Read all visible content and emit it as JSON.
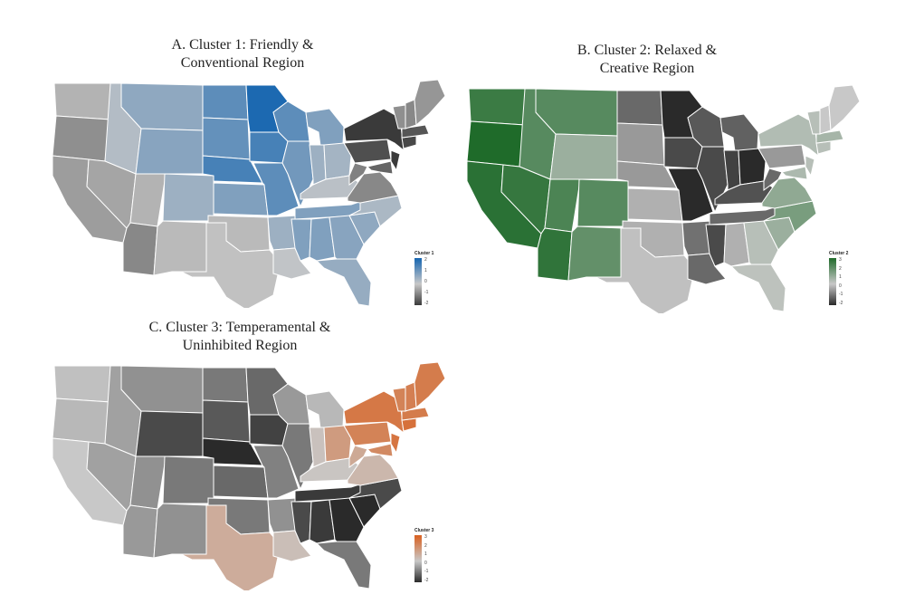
{
  "panels": [
    {
      "title_line1": "A. Cluster 1: Friendly &",
      "title_line2": "Conventional Region",
      "legend_title": "Cluster 1",
      "legend_ticks": [
        "2",
        "1",
        "0",
        "-1",
        "-2"
      ],
      "scale": {
        "low": "#3a3a3a",
        "mid": "#c8c8c8",
        "high": "#1565b0"
      }
    },
    {
      "title_line1": "B. Cluster 2: Relaxed &",
      "title_line2": "Creative Region",
      "legend_title": "Cluster 2",
      "legend_ticks": [
        "3",
        "2",
        "1",
        "0",
        "-1",
        "-2"
      ],
      "scale": {
        "low": "#2a2a2a",
        "mid": "#c8c8c8",
        "high": "#1f6b2a"
      }
    },
    {
      "title_line1": "C. Cluster 3: Temperamental &",
      "title_line2": "Uninhibited Region",
      "legend_title": "Cluster 3",
      "legend_ticks": [
        "3",
        "2",
        "1",
        "0",
        "-1",
        "-2"
      ],
      "scale": {
        "low": "#2a2a2a",
        "mid": "#c8c8c8",
        "high": "#d9601f"
      }
    }
  ]
}
